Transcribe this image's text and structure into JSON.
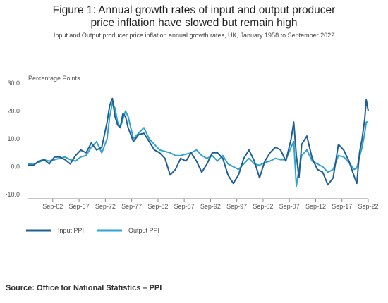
{
  "title": "Figure 1: Annual growth rates of input and output producer price inflation have slowed but remain high",
  "subtitle": "Input and Output producer price inflation annual growth rates, UK, January 1958 to September 2022",
  "source": "Source: Office for National Statistics – PPI",
  "colors": {
    "input": "#1f5f91",
    "output": "#2fa3cf",
    "axis": "#888888",
    "text": "#555555"
  },
  "chart_data": {
    "type": "line",
    "ylabel": "Percentage Points",
    "xlabel": "",
    "ylim": [
      -10,
      30
    ],
    "xlim": [
      1958.0,
      2022.67
    ],
    "grid": false,
    "legend_position": "bottom-left",
    "y_ticks": [
      {
        "value": 30,
        "label": "30.0"
      },
      {
        "value": 20,
        "label": "20.0"
      },
      {
        "value": 10,
        "label": "10.0"
      },
      {
        "value": 0,
        "label": "0.0"
      },
      {
        "value": -10,
        "label": "-10.0"
      }
    ],
    "x_ticks": [
      {
        "value": 1962.67,
        "label": "Sep-62"
      },
      {
        "value": 1967.67,
        "label": "Sep-67"
      },
      {
        "value": 1972.67,
        "label": "Sep-72"
      },
      {
        "value": 1977.67,
        "label": "Sep-77"
      },
      {
        "value": 1982.67,
        "label": "Sep-82"
      },
      {
        "value": 1987.67,
        "label": "Sep-87"
      },
      {
        "value": 1992.67,
        "label": "Sep-92"
      },
      {
        "value": 1997.67,
        "label": "Sep-97"
      },
      {
        "value": 2002.67,
        "label": "Sep-02"
      },
      {
        "value": 2007.67,
        "label": "Sep-07"
      },
      {
        "value": 2012.67,
        "label": "Sep-12"
      },
      {
        "value": 2017.67,
        "label": "Sep-17"
      },
      {
        "value": 2022.67,
        "label": "Sep-22"
      }
    ],
    "series": [
      {
        "name": "Input PPI",
        "x": [
          1958.0,
          1959.0,
          1960.0,
          1961.0,
          1962.0,
          1963.0,
          1964.0,
          1965.0,
          1966.0,
          1967.0,
          1968.0,
          1969.0,
          1970.0,
          1971.0,
          1972.0,
          1973.0,
          1973.5,
          1974.0,
          1974.5,
          1975.0,
          1975.5,
          1976.0,
          1976.5,
          1977.0,
          1978.0,
          1979.0,
          1980.0,
          1981.0,
          1982.0,
          1983.0,
          1984.0,
          1985.0,
          1986.0,
          1987.0,
          1988.0,
          1989.0,
          1990.0,
          1991.0,
          1992.0,
          1993.0,
          1994.0,
          1995.0,
          1996.0,
          1997.0,
          1998.0,
          1999.0,
          2000.0,
          2001.0,
          2002.0,
          2003.0,
          2004.0,
          2005.0,
          2006.0,
          2007.0,
          2008.0,
          2008.5,
          2009.0,
          2009.5,
          2010.0,
          2011.0,
          2012.0,
          2013.0,
          2014.0,
          2015.0,
          2016.0,
          2017.0,
          2018.0,
          2019.0,
          2020.0,
          2020.5,
          2021.0,
          2021.5,
          2022.0,
          2022.3,
          2022.67
        ],
        "values": [
          0.5,
          0.5,
          2.0,
          2.5,
          1.0,
          3.5,
          3.5,
          2.5,
          1.0,
          4.0,
          6.0,
          5.0,
          8.5,
          6.0,
          7.0,
          16.0,
          22.0,
          24.5,
          18.0,
          15.0,
          14.0,
          19.0,
          18.0,
          14.0,
          9.0,
          11.5,
          12.0,
          9.0,
          6.0,
          5.0,
          3.0,
          -3.0,
          -1.0,
          3.0,
          2.0,
          5.0,
          2.0,
          -2.0,
          1.0,
          5.0,
          5.0,
          3.0,
          -3.0,
          -6.0,
          -3.0,
          3.0,
          6.0,
          2.0,
          -4.0,
          2.0,
          5.0,
          7.0,
          6.0,
          2.0,
          10.0,
          16.0,
          4.0,
          -4.0,
          8.0,
          11.0,
          3.0,
          -1.0,
          -2.0,
          -6.5,
          -4.0,
          8.0,
          6.0,
          2.0,
          -3.5,
          -6.0,
          5.0,
          10.0,
          17.0,
          24.0,
          20.0
        ]
      },
      {
        "name": "Output PPI",
        "x": [
          1958.0,
          1959.0,
          1960.0,
          1961.0,
          1962.0,
          1963.0,
          1964.0,
          1965.0,
          1966.0,
          1967.0,
          1968.0,
          1969.0,
          1970.0,
          1971.0,
          1972.0,
          1973.0,
          1973.5,
          1974.0,
          1974.5,
          1975.0,
          1975.5,
          1976.0,
          1976.5,
          1977.0,
          1978.0,
          1979.0,
          1980.0,
          1981.0,
          1982.0,
          1983.0,
          1984.0,
          1985.0,
          1986.0,
          1987.0,
          1988.0,
          1989.0,
          1990.0,
          1991.0,
          1992.0,
          1993.0,
          1994.0,
          1995.0,
          1996.0,
          1997.0,
          1998.0,
          1999.0,
          2000.0,
          2001.0,
          2002.0,
          2003.0,
          2004.0,
          2005.0,
          2006.0,
          2007.0,
          2008.0,
          2008.5,
          2009.0,
          2009.5,
          2010.0,
          2011.0,
          2012.0,
          2013.0,
          2014.0,
          2015.0,
          2016.0,
          2017.0,
          2018.0,
          2019.0,
          2020.0,
          2020.5,
          2021.0,
          2021.5,
          2022.0,
          2022.3,
          2022.67
        ],
        "values": [
          1.0,
          0.8,
          1.5,
          2.5,
          2.0,
          2.5,
          3.0,
          3.5,
          2.5,
          2.0,
          3.5,
          4.0,
          7.0,
          9.0,
          5.0,
          10.0,
          18.0,
          23.0,
          21.0,
          16.0,
          14.0,
          17.0,
          20.0,
          18.0,
          10.0,
          12.0,
          14.0,
          10.0,
          8.0,
          6.0,
          5.5,
          5.0,
          4.0,
          4.0,
          4.5,
          5.0,
          6.0,
          4.0,
          3.0,
          4.0,
          2.0,
          4.0,
          1.0,
          0.0,
          -1.0,
          1.0,
          3.0,
          1.0,
          0.5,
          1.5,
          2.0,
          3.0,
          2.5,
          2.5,
          7.0,
          9.0,
          -7.0,
          -1.0,
          4.0,
          6.0,
          2.0,
          1.0,
          0.0,
          -2.0,
          -1.0,
          4.0,
          3.5,
          1.5,
          -1.0,
          -0.5,
          3.5,
          7.0,
          12.0,
          16.0,
          16.0
        ]
      }
    ]
  }
}
